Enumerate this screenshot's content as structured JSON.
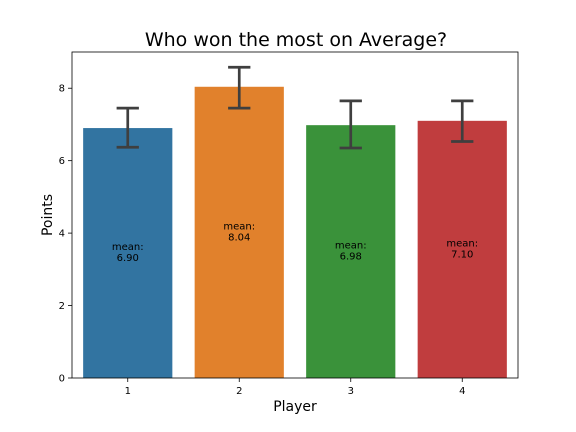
{
  "chart_data": {
    "type": "bar",
    "title": "Who won the most on Average?",
    "xlabel": "Player",
    "ylabel": "Points",
    "categories": [
      "1",
      "2",
      "3",
      "4"
    ],
    "values": [
      6.9,
      8.04,
      6.98,
      7.1
    ],
    "error_low": [
      6.37,
      7.45,
      6.35,
      6.53
    ],
    "error_high": [
      7.45,
      8.58,
      7.65,
      7.65
    ],
    "bar_labels": [
      {
        "line1": "mean:",
        "line2": "6.90"
      },
      {
        "line1": "mean:",
        "line2": "8.04"
      },
      {
        "line1": "mean:",
        "line2": "6.98"
      },
      {
        "line1": "mean:",
        "line2": "7.10"
      }
    ],
    "colors": [
      "#3274a1",
      "#e1812c",
      "#3a923a",
      "#c03d3e"
    ],
    "error_color": "#3f3f3f",
    "ylim": [
      0,
      9
    ],
    "yticks": [
      0,
      2,
      4,
      6,
      8
    ],
    "grid": false,
    "legend": "none"
  }
}
